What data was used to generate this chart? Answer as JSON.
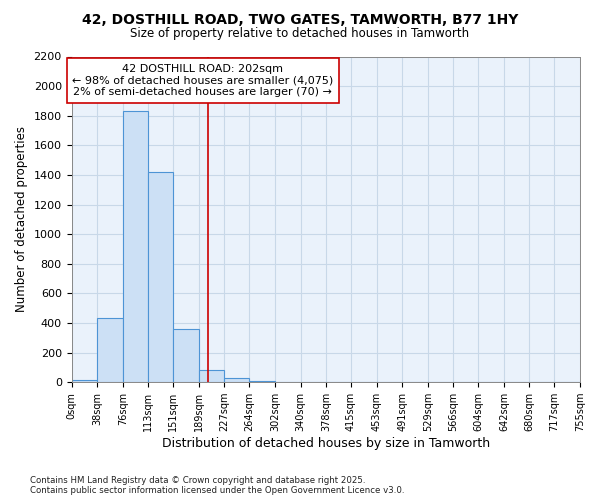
{
  "title_line1": "42, DOSTHILL ROAD, TWO GATES, TAMWORTH, B77 1HY",
  "title_line2": "Size of property relative to detached houses in Tamworth",
  "xlabel": "Distribution of detached houses by size in Tamworth",
  "ylabel": "Number of detached properties",
  "bar_edges": [
    0,
    38,
    76,
    113,
    151,
    189,
    227,
    264,
    302,
    340,
    378,
    415,
    453,
    491,
    529,
    566,
    604,
    642,
    680,
    717,
    755
  ],
  "bar_heights": [
    15,
    435,
    1835,
    1420,
    360,
    80,
    30,
    5,
    0,
    0,
    0,
    0,
    0,
    0,
    0,
    0,
    0,
    0,
    0,
    0
  ],
  "bar_facecolor": "#cce0f5",
  "bar_edgecolor": "#4d94d5",
  "grid_color": "#c8d8e8",
  "vline_x": 202,
  "vline_color": "#cc0000",
  "annotation_text": "42 DOSTHILL ROAD: 202sqm\n← 98% of detached houses are smaller (4,075)\n2% of semi-detached houses are larger (70) →",
  "annotation_bbox_edgecolor": "#cc0000",
  "annotation_bbox_facecolor": "#ffffff",
  "ylim": [
    0,
    2200
  ],
  "yticks": [
    0,
    200,
    400,
    600,
    800,
    1000,
    1200,
    1400,
    1600,
    1800,
    2000,
    2200
  ],
  "bg_color": "#ffffff",
  "plot_bg_color": "#eaf2fb",
  "footer_line1": "Contains HM Land Registry data © Crown copyright and database right 2025.",
  "footer_line2": "Contains public sector information licensed under the Open Government Licence v3.0.",
  "tick_labels": [
    "0sqm",
    "38sqm",
    "76sqm",
    "113sqm",
    "151sqm",
    "189sqm",
    "227sqm",
    "264sqm",
    "302sqm",
    "340sqm",
    "378sqm",
    "415sqm",
    "453sqm",
    "491sqm",
    "529sqm",
    "566sqm",
    "604sqm",
    "642sqm",
    "680sqm",
    "717sqm",
    "755sqm"
  ]
}
